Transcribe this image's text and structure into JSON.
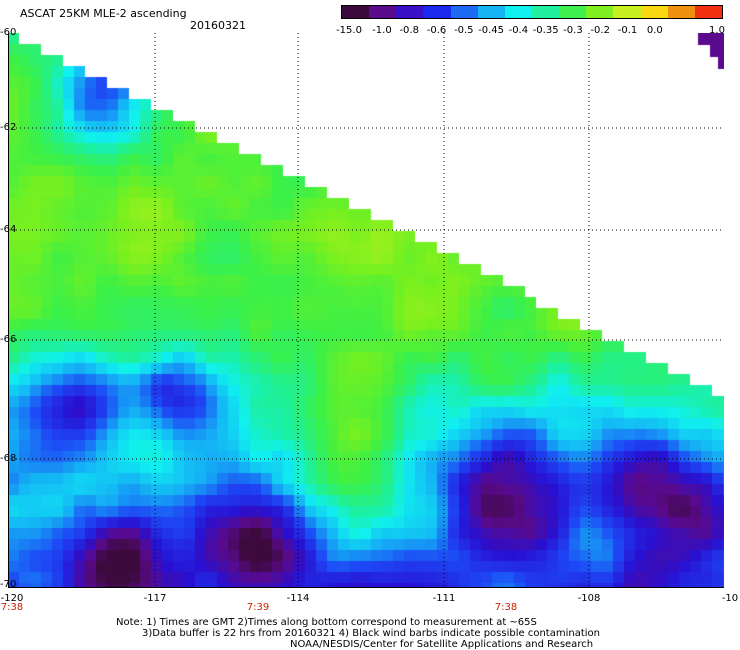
{
  "header": {
    "title": "ASCAT 25KM MLE-2 ascending",
    "date": "20160321"
  },
  "colorbar": {
    "labels": [
      "-15.0",
      "-1.0",
      "-0.8",
      "-0.6",
      "-0.5",
      "-0.45",
      "-0.4",
      "-0.35",
      "-0.3",
      "-0.2",
      "-0.1",
      "0.0",
      "1.0"
    ],
    "colors": [
      "#3c0a3c",
      "#5a0a8c",
      "#3a10c8",
      "#1a28f0",
      "#1e6af5",
      "#14b4f5",
      "#10f0f0",
      "#20f0a0",
      "#40f050",
      "#80f020",
      "#c8f020",
      "#f8d810",
      "#f09010",
      "#f03010"
    ]
  },
  "axes": {
    "lat_labels": [
      "-60",
      "-62",
      "-64",
      "-66",
      "-68",
      "-70"
    ],
    "lon_labels": [
      "-120",
      "-117",
      "-114",
      "-111",
      "-108",
      "-10"
    ],
    "time_labels": [
      "7:38",
      "7:39",
      "7:38"
    ]
  },
  "notes": {
    "line1": "Note: 1) Times are GMT 2)Times along bottom correspond to measurement at ~65S",
    "line2": "3)Data buffer is 22 hrs from 20160321 4) Black wind barbs indicate possible contamination",
    "line3": "NOAA/NESDIS/Center for Satellite Applications and Research"
  }
}
